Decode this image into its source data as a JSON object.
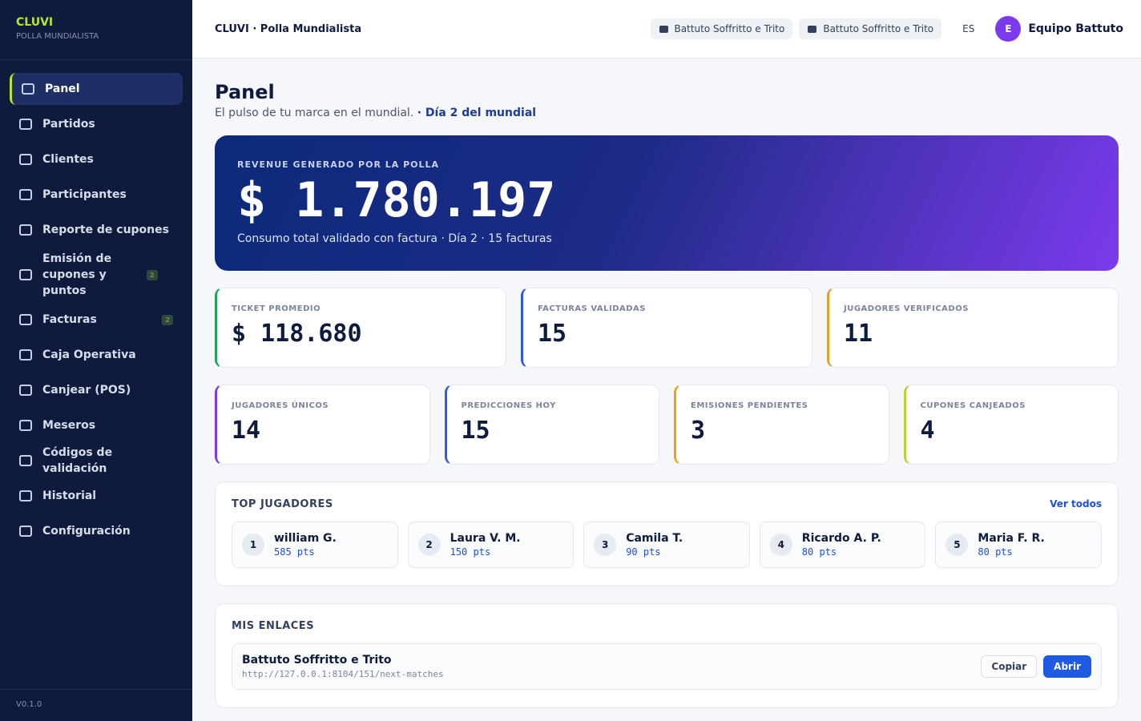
{
  "sidebar": {
    "brand": "CLUVI",
    "tagline": "POLLA MUNDIALISTA",
    "nav": [
      {
        "label": "Panel"
      },
      {
        "label": "Partidos"
      },
      {
        "label": "Clientes"
      },
      {
        "label": "Participantes"
      },
      {
        "label": "Reporte de cupones"
      },
      {
        "label": "Emisión de cupones y puntos",
        "badge": "2"
      },
      {
        "label": "Facturas",
        "badge": "2"
      },
      {
        "label": "Caja Operativa"
      },
      {
        "label": "Canjear (POS)"
      },
      {
        "label": "Meseros"
      },
      {
        "label": "Códigos de validación"
      },
      {
        "label": "Historial"
      },
      {
        "label": "Configuración"
      }
    ],
    "version": "V0.1.0"
  },
  "topbar": {
    "title": "CLUVI · Polla Mundialista",
    "chips": [
      "Battuto Soffritto e Trito",
      "Battuto Soffritto e Trito"
    ],
    "lang": "ES",
    "avatar": "E",
    "user": "Equipo Battuto"
  },
  "header": {
    "title": "Panel",
    "subtitle": "El pulso de tu marca en el mundial.",
    "day": "· Día 2 del mundial"
  },
  "hero": {
    "label": "REVENUE GENERADO POR LA POLLA",
    "value": "$ 1.780.197",
    "note": "Consumo total validado con factura · Día 2 · 15 facturas"
  },
  "stats_row1": [
    {
      "label": "TICKET PROMEDIO",
      "value": "$ 118.680"
    },
    {
      "label": "FACTURAS VALIDADAS",
      "value": 15
    },
    {
      "label": "JUGADORES VERIFICADOS",
      "value": 11
    }
  ],
  "stats_row2": [
    {
      "label": "JUGADORES ÚNICOS",
      "value": 14
    },
    {
      "label": "PREDICCIONES HOY",
      "value": 15
    },
    {
      "label": "EMISIONES PENDIENTES",
      "value": 3
    },
    {
      "label": "CUPONES CANJEADOS",
      "value": 4
    }
  ],
  "top_players": {
    "title": "TOP JUGADORES",
    "link": "Ver todos",
    "players": [
      {
        "rank": 1,
        "name": "william G.",
        "points": "585 pts"
      },
      {
        "rank": 2,
        "name": "Laura V. M.",
        "points": "150 pts"
      },
      {
        "rank": 3,
        "name": "Camila T.",
        "points": "90 pts"
      },
      {
        "rank": 4,
        "name": "Ricardo A. P.",
        "points": "80 pts"
      },
      {
        "rank": 5,
        "name": "Maria F. R.",
        "points": "80 pts"
      }
    ]
  },
  "links": {
    "title": "MIS ENLACES",
    "items": [
      {
        "name": "Battuto Soffritto e Trito",
        "url": "http://127.0.0.1:8104/151/next-matches",
        "copy": "Copiar",
        "open": "Abrir"
      }
    ]
  }
}
